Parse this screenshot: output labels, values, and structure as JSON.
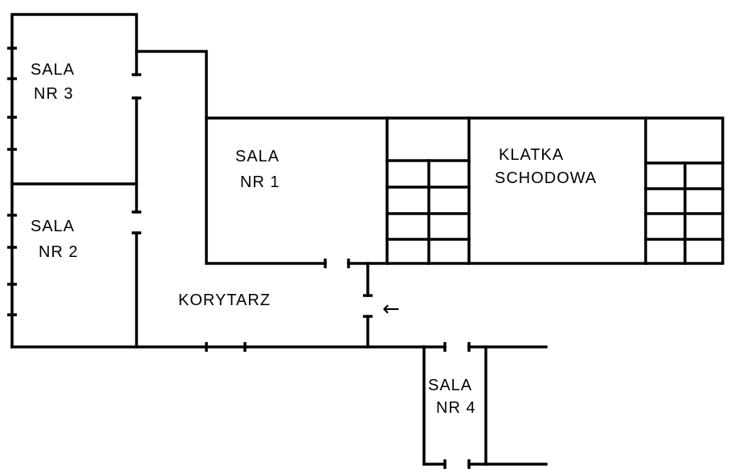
{
  "rooms": {
    "sala3": {
      "line1": "SALA",
      "line2": "NR 3"
    },
    "sala2": {
      "line1": "SALA",
      "line2": "NR 2"
    },
    "sala1": {
      "line1": "SALA",
      "line2": "NR 1"
    },
    "klatka": {
      "line1": "KLATKA",
      "line2": "SCHODOWA"
    },
    "korytarz": {
      "label": "KORYTARZ"
    },
    "sala4": {
      "line1": "SALA",
      "line2": "NR 4"
    }
  },
  "entrance_arrow": "←",
  "colors": {
    "line": "#000000",
    "background": "#ffffff"
  }
}
